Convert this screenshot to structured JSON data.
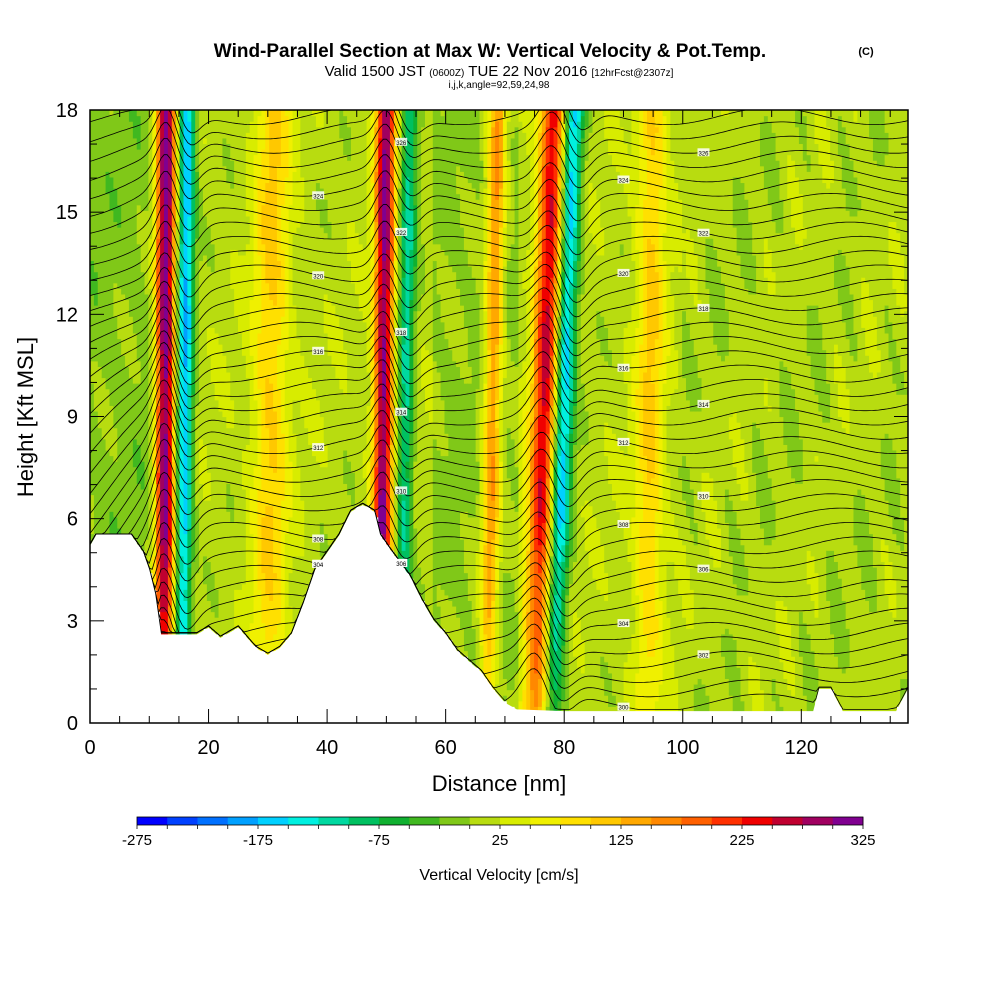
{
  "chart_data": {
    "type": "heatmap",
    "title": "Wind-Parallel Section at Max W: Vertical Velocity & Pot.Temp.",
    "title_mark": "(C)",
    "subtitle_parts": [
      "Valid 1500 JST",
      "(0600Z)",
      "TUE 22 Nov 2016",
      "[12hrFcst@2307z]"
    ],
    "subtitle2": "i,j,k,angle=92,59,24,98",
    "xlabel": "Distance [nm]",
    "ylabel": "Height [Kft MSL]",
    "xlim": [
      0,
      138
    ],
    "ylim": [
      0,
      18
    ],
    "xticks": [
      "0",
      "20",
      "40",
      "60",
      "80",
      "100",
      "120"
    ],
    "yticks": [
      "0",
      "3",
      "6",
      "9",
      "12",
      "15",
      "18"
    ],
    "xtick_values": [
      0,
      20,
      40,
      60,
      80,
      100,
      120
    ],
    "ytick_values": [
      0,
      3,
      6,
      9,
      12,
      15,
      18
    ],
    "updraft_axes": [
      {
        "x0": 12.5,
        "slope": 0.02,
        "amp": 300,
        "width": 1.6
      },
      {
        "x0": 49.0,
        "slope": 0.05,
        "amp": 290,
        "width": 1.6
      },
      {
        "x0": 75.0,
        "slope": 0.18,
        "amp": 240,
        "width": 2.2
      },
      {
        "x0": 67.0,
        "slope": 0.1,
        "amp": 150,
        "width": 1.5
      },
      {
        "x0": 30.0,
        "slope": 0.05,
        "amp": 90,
        "width": 3.0
      },
      {
        "x0": 94.0,
        "slope": 0.05,
        "amp": 90,
        "width": 2.5
      }
    ],
    "downdraft_axes": [
      {
        "x0": 15.5,
        "slope": 0.05,
        "amp": -190,
        "width": 1.4
      },
      {
        "x0": 52.5,
        "slope": 0.08,
        "amp": -120,
        "width": 1.4
      },
      {
        "x0": 78.0,
        "slope": 0.2,
        "amp": -190,
        "width": 1.7
      }
    ],
    "terrain": [
      [
        0,
        5.2
      ],
      [
        1,
        5.5
      ],
      [
        7,
        5.5
      ],
      [
        9,
        5.0
      ],
      [
        10,
        4.5
      ],
      [
        11,
        3.8
      ],
      [
        12,
        2.6
      ],
      [
        18,
        2.6
      ],
      [
        20,
        2.8
      ],
      [
        22,
        2.5
      ],
      [
        25,
        2.8
      ],
      [
        28,
        2.2
      ],
      [
        30,
        2.0
      ],
      [
        32,
        2.2
      ],
      [
        34,
        2.6
      ],
      [
        36,
        3.5
      ],
      [
        38,
        4.5
      ],
      [
        40,
        5.0
      ],
      [
        42,
        5.5
      ],
      [
        44,
        6.2
      ],
      [
        46,
        6.4
      ],
      [
        48,
        6.2
      ],
      [
        49,
        5.5
      ],
      [
        51,
        5.0
      ],
      [
        54,
        4.3
      ],
      [
        56,
        3.6
      ],
      [
        58,
        3.0
      ],
      [
        60,
        2.6
      ],
      [
        62,
        2.1
      ],
      [
        64,
        1.8
      ],
      [
        66,
        1.5
      ],
      [
        68,
        1.0
      ],
      [
        70,
        0.6
      ],
      [
        72,
        0.4
      ],
      [
        80,
        0.35
      ],
      [
        100,
        0.35
      ],
      [
        122,
        0.35
      ],
      [
        123,
        1.0
      ],
      [
        125,
        1.0
      ],
      [
        127,
        0.35
      ],
      [
        136,
        0.35
      ],
      [
        138,
        1.0
      ]
    ],
    "colorbar": {
      "label": "Vertical Velocity [cm/s]",
      "min": -275,
      "max": 325,
      "step": 25,
      "tick_labels": [
        "-275",
        "-175",
        "-75",
        "25",
        "125",
        "225",
        "325"
      ],
      "tick_values": [
        -275,
        -175,
        -75,
        25,
        125,
        225,
        325
      ],
      "colors": [
        "#0000ff",
        "#0040ff",
        "#0070ff",
        "#00a0ff",
        "#00d0ff",
        "#00f0e0",
        "#00d8a0",
        "#00c060",
        "#10b030",
        "#40b820",
        "#80c818",
        "#b8dc10",
        "#d8ec00",
        "#f0f000",
        "#ffe000",
        "#ffc800",
        "#ffa800",
        "#ff8800",
        "#ff6000",
        "#ff3000",
        "#f00000",
        "#c00030",
        "#a00060",
        "#800090"
      ]
    },
    "contour_labels": [
      "300",
      "302",
      "304",
      "306",
      "308",
      "310",
      "312",
      "314",
      "316",
      "318",
      "320",
      "322",
      "324",
      "326",
      "328"
    ],
    "grid": false
  }
}
